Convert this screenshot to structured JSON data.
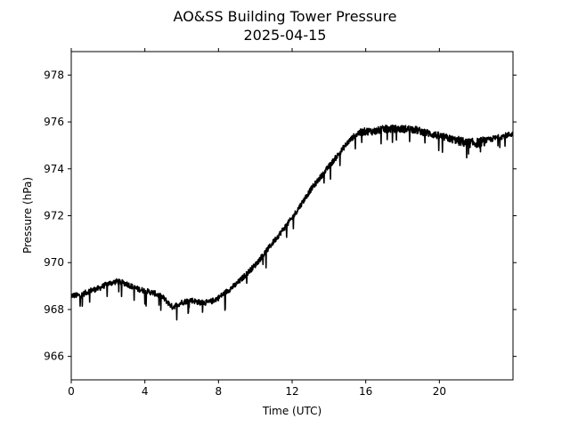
{
  "chart_data": {
    "type": "line",
    "title": "AO&SS Building Tower Pressure",
    "subtitle": "2025-04-15",
    "xlabel": "Time (UTC)",
    "ylabel": "Pressure (hPa)",
    "xlim": [
      0,
      24
    ],
    "ylim": [
      965,
      979
    ],
    "xticks": [
      0,
      4,
      8,
      12,
      16,
      20
    ],
    "yticks": [
      966,
      968,
      970,
      972,
      974,
      976,
      978
    ],
    "grid": false,
    "line_color": "#000000",
    "series": [
      {
        "x": [
          0,
          0.5,
          1,
          1.5,
          2,
          2.5,
          3,
          3.5,
          4,
          4.5,
          5,
          5.5,
          6,
          6.5,
          7,
          7.5,
          8,
          8.5,
          9,
          9.5,
          10,
          10.5,
          11,
          11.5,
          12,
          12.5,
          13,
          13.5,
          14,
          14.5,
          15,
          15.5,
          16,
          16.5,
          17,
          17.5,
          18,
          18.5,
          19,
          19.5,
          20,
          20.5,
          21,
          21.5,
          22,
          22.5,
          23,
          23.5,
          24
        ],
        "values": [
          968.6,
          968.6,
          968.8,
          968.9,
          969.1,
          969.2,
          969.1,
          968.9,
          968.8,
          968.7,
          968.5,
          968.1,
          968.3,
          968.4,
          968.3,
          968.3,
          968.5,
          968.8,
          969.1,
          969.5,
          969.9,
          970.4,
          970.9,
          971.4,
          971.9,
          972.5,
          973.1,
          973.6,
          974.1,
          974.6,
          975.1,
          975.5,
          975.6,
          975.6,
          975.7,
          975.7,
          975.7,
          975.7,
          975.6,
          975.5,
          975.4,
          975.3,
          975.2,
          975.1,
          975.1,
          975.2,
          975.3,
          975.4,
          975.5
        ]
      }
    ]
  }
}
